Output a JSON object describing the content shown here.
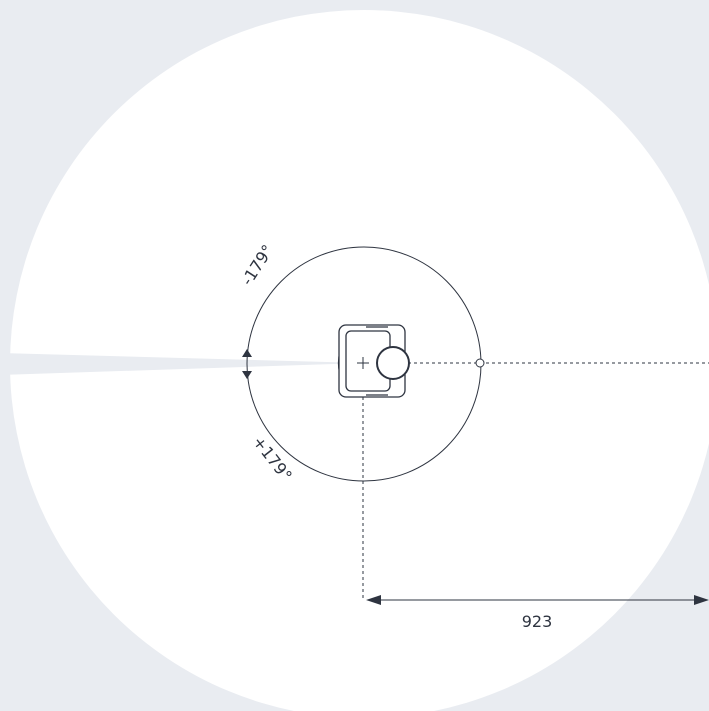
{
  "diagram": {
    "angle_ccw_label": "-179°",
    "angle_cw_label": "+179°",
    "reach_label": "923",
    "colors": {
      "background": "#e9ecf1",
      "workspace": "#ffffff",
      "line": "#2e3440"
    }
  }
}
